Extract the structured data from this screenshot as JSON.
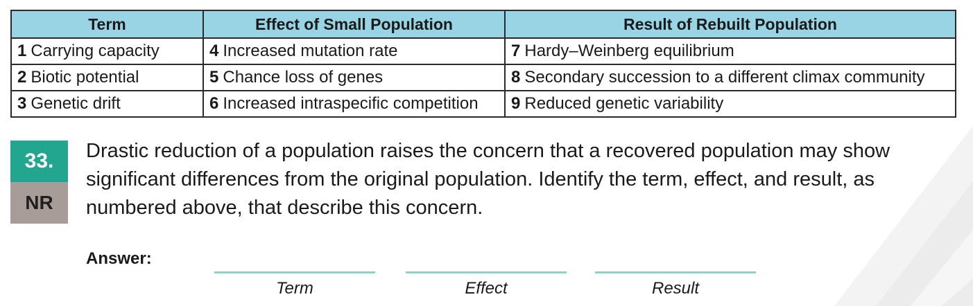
{
  "table": {
    "headers": [
      "Term",
      "Effect of Small Population",
      "Result of Rebuilt Population"
    ],
    "rows": [
      [
        {
          "num": "1",
          "text": "Carrying capacity"
        },
        {
          "num": "4",
          "text": "Increased mutation rate"
        },
        {
          "num": "7",
          "text": "Hardy–Weinberg equilibrium"
        }
      ],
      [
        {
          "num": "2",
          "text": "Biotic potential"
        },
        {
          "num": "5",
          "text": "Chance loss of genes"
        },
        {
          "num": "8",
          "text": "Secondary succession to a different climax community"
        }
      ],
      [
        {
          "num": "3",
          "text": "Genetic drift"
        },
        {
          "num": "6",
          "text": "Increased intraspecific competition"
        },
        {
          "num": "9",
          "text": "Reduced genetic variability"
        }
      ]
    ]
  },
  "question": {
    "number": "33.",
    "type": "NR",
    "text": "Drastic reduction of a population raises the concern that a recovered population may show significant differences from the original population. Identify the term, effect, and result, as numbered above, that describe this concern."
  },
  "answer": {
    "label": "Answer:",
    "blanks": [
      "Term",
      "Effect",
      "Result"
    ]
  },
  "colors": {
    "header_bg": "#98d4e4",
    "number_badge": "#23a690",
    "type_badge": "#a89c98",
    "answer_line": "#8fd3c6"
  }
}
